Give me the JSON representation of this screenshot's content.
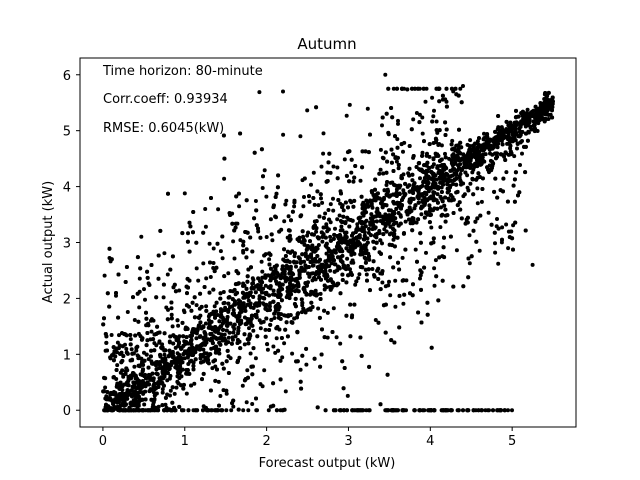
{
  "chart_data": {
    "type": "scatter",
    "title": "Autumn",
    "xlabel": "Forecast output (kW)",
    "ylabel": "Actual output (kW)",
    "xlim": [
      -0.28,
      5.78
    ],
    "ylim": [
      -0.3,
      6.3
    ],
    "x_ticks": [
      0,
      1,
      2,
      3,
      4,
      5
    ],
    "y_ticks": [
      0,
      1,
      2,
      3,
      4,
      5,
      6
    ],
    "grid": false,
    "marker_color": "#000000",
    "annotations": [
      "Time horizon: 80-minute",
      "Corr.coeff: 0.93934",
      "RMSE: 0.6045(kW)"
    ],
    "generation": {
      "n_points": 5200,
      "correlation": 0.93934,
      "rmse_kw": 0.6045,
      "x_range": [
        0,
        5.5
      ],
      "y_range": [
        0,
        6.0
      ]
    }
  }
}
